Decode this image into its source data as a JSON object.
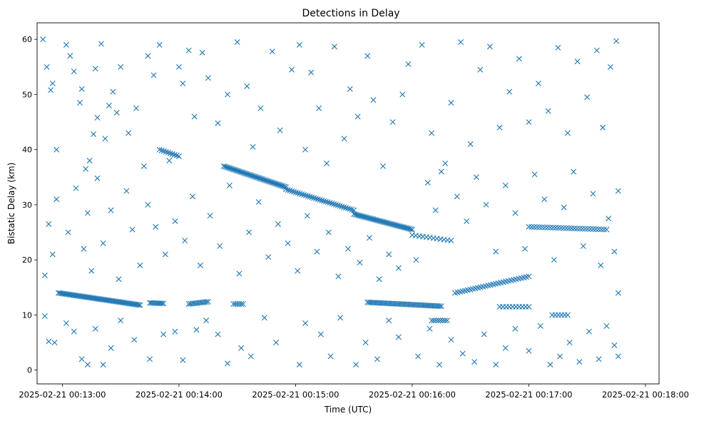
{
  "chart_data": {
    "type": "scatter",
    "title": "Detections in Delay",
    "xlabel": "Time (UTC)",
    "ylabel": "Bistatic Delay (km)",
    "marker": "x",
    "color": "#1f77b4",
    "grid": false,
    "xlim": [
      "2025-02-21 00:12:47",
      "2025-02-21 00:18:07"
    ],
    "ylim": [
      -2.5,
      63
    ],
    "x_ticks": [
      "2025-02-21 00:13:00",
      "2025-02-21 00:14:00",
      "2025-02-21 00:15:00",
      "2025-02-21 00:16:00",
      "2025-02-21 00:17:00",
      "2025-02-21 00:18:00"
    ],
    "y_ticks": [
      "0",
      "10",
      "20",
      "30",
      "40",
      "50",
      "60"
    ],
    "segments": [
      {
        "t_start": "2025-02-21 00:12:58",
        "t_end": "2025-02-21 00:13:40",
        "delay_start": 14.0,
        "delay_end": 11.8,
        "points": 60
      },
      {
        "t_start": "2025-02-21 00:13:45",
        "t_end": "2025-02-21 00:13:52",
        "delay_start": 12.2,
        "delay_end": 12.1,
        "points": 10
      },
      {
        "t_start": "2025-02-21 00:14:05",
        "t_end": "2025-02-21 00:14:15",
        "delay_start": 12.0,
        "delay_end": 12.4,
        "points": 12
      },
      {
        "t_start": "2025-02-21 00:14:28",
        "t_end": "2025-02-21 00:14:33",
        "delay_start": 12.0,
        "delay_end": 12.0,
        "points": 6
      },
      {
        "t_start": "2025-02-21 00:15:37",
        "t_end": "2025-02-21 00:16:15",
        "delay_start": 12.3,
        "delay_end": 11.6,
        "points": 45
      },
      {
        "t_start": "2025-02-21 00:13:50",
        "t_end": "2025-02-21 00:14:00",
        "delay_start": 40.0,
        "delay_end": 38.8,
        "points": 10
      },
      {
        "t_start": "2025-02-21 00:14:23",
        "t_end": "2025-02-21 00:14:55",
        "delay_start": 37.0,
        "delay_end": 33.2,
        "points": 45
      },
      {
        "t_start": "2025-02-21 00:14:55",
        "t_end": "2025-02-21 00:15:30",
        "delay_start": 32.8,
        "delay_end": 29.0,
        "points": 35
      },
      {
        "t_start": "2025-02-21 00:15:30",
        "t_end": "2025-02-21 00:16:00",
        "delay_start": 28.3,
        "delay_end": 25.5,
        "points": 40
      },
      {
        "t_start": "2025-02-21 00:16:00",
        "t_end": "2025-02-21 00:16:20",
        "delay_start": 24.5,
        "delay_end": 23.5,
        "points": 12
      },
      {
        "t_start": "2025-02-21 00:16:22",
        "t_end": "2025-02-21 00:17:00",
        "delay_start": 14.0,
        "delay_end": 17.0,
        "points": 30
      },
      {
        "t_start": "2025-02-21 00:17:00",
        "t_end": "2025-02-21 00:17:40",
        "delay_start": 26.0,
        "delay_end": 25.5,
        "points": 30
      },
      {
        "t_start": "2025-02-21 00:16:45",
        "t_end": "2025-02-21 00:17:00",
        "delay_start": 11.5,
        "delay_end": 11.5,
        "points": 10
      },
      {
        "t_start": "2025-02-21 00:16:10",
        "t_end": "2025-02-21 00:16:18",
        "delay_start": 9.0,
        "delay_end": 9.0,
        "points": 8
      },
      {
        "t_start": "2025-02-21 00:17:12",
        "t_end": "2025-02-21 00:17:20",
        "delay_start": 10.0,
        "delay_end": 10.0,
        "points": 6
      }
    ],
    "scatter_points": [
      [
        "2025-02-21 00:12:50",
        60.0
      ],
      [
        "2025-02-21 00:12:52",
        55.0
      ],
      [
        "2025-02-21 00:12:54",
        50.8
      ],
      [
        "2025-02-21 00:12:55",
        52.0
      ],
      [
        "2025-02-21 00:12:57",
        40.0
      ],
      [
        "2025-02-21 00:13:02",
        59.0
      ],
      [
        "2025-02-21 00:13:04",
        57.0
      ],
      [
        "2025-02-21 00:13:06",
        54.2
      ],
      [
        "2025-02-21 00:13:09",
        48.5
      ],
      [
        "2025-02-21 00:13:10",
        51.0
      ],
      [
        "2025-02-21 00:13:12",
        36.5
      ],
      [
        "2025-02-21 00:13:14",
        38.0
      ],
      [
        "2025-02-21 00:13:16",
        42.8
      ],
      [
        "2025-02-21 00:13:17",
        54.7
      ],
      [
        "2025-02-21 00:13:18",
        45.8
      ],
      [
        "2025-02-21 00:13:20",
        59.2
      ],
      [
        "2025-02-21 00:13:22",
        42.0
      ],
      [
        "2025-02-21 00:13:24",
        48.0
      ],
      [
        "2025-02-21 00:13:26",
        50.5
      ],
      [
        "2025-02-21 00:13:28",
        46.7
      ],
      [
        "2025-02-21 00:13:30",
        55.0
      ],
      [
        "2025-02-21 00:13:34",
        43.0
      ],
      [
        "2025-02-21 00:13:38",
        47.5
      ],
      [
        "2025-02-21 00:13:42",
        37.0
      ],
      [
        "2025-02-21 00:13:44",
        57.0
      ],
      [
        "2025-02-21 00:13:47",
        53.5
      ],
      [
        "2025-02-21 00:13:50",
        59.0
      ],
      [
        "2025-02-21 00:13:55",
        38.0
      ],
      [
        "2025-02-21 00:14:00",
        55.0
      ],
      [
        "2025-02-21 00:14:02",
        52.0
      ],
      [
        "2025-02-21 00:14:05",
        58.0
      ],
      [
        "2025-02-21 00:14:08",
        46.0
      ],
      [
        "2025-02-21 00:14:12",
        57.6
      ],
      [
        "2025-02-21 00:14:15",
        53.0
      ],
      [
        "2025-02-21 00:14:20",
        44.8
      ],
      [
        "2025-02-21 00:14:25",
        50.0
      ],
      [
        "2025-02-21 00:14:30",
        59.5
      ],
      [
        "2025-02-21 00:14:35",
        51.5
      ],
      [
        "2025-02-21 00:14:38",
        40.5
      ],
      [
        "2025-02-21 00:14:42",
        47.5
      ],
      [
        "2025-02-21 00:14:48",
        57.8
      ],
      [
        "2025-02-21 00:14:52",
        43.5
      ],
      [
        "2025-02-21 00:14:58",
        54.5
      ],
      [
        "2025-02-21 00:15:02",
        59.0
      ],
      [
        "2025-02-21 00:15:05",
        40.0
      ],
      [
        "2025-02-21 00:15:08",
        54.0
      ],
      [
        "2025-02-21 00:15:12",
        47.5
      ],
      [
        "2025-02-21 00:15:16",
        37.5
      ],
      [
        "2025-02-21 00:15:20",
        58.7
      ],
      [
        "2025-02-21 00:15:25",
        42.0
      ],
      [
        "2025-02-21 00:15:28",
        51.0
      ],
      [
        "2025-02-21 00:15:32",
        46.0
      ],
      [
        "2025-02-21 00:15:37",
        57.0
      ],
      [
        "2025-02-21 00:15:40",
        49.0
      ],
      [
        "2025-02-21 00:15:45",
        37.0
      ],
      [
        "2025-02-21 00:15:50",
        45.0
      ],
      [
        "2025-02-21 00:15:55",
        50.0
      ],
      [
        "2025-02-21 00:15:58",
        55.5
      ],
      [
        "2025-02-21 00:16:05",
        59.0
      ],
      [
        "2025-02-21 00:16:10",
        43.0
      ],
      [
        "2025-02-21 00:16:15",
        36.0
      ],
      [
        "2025-02-21 00:16:20",
        48.5
      ],
      [
        "2025-02-21 00:16:25",
        59.5
      ],
      [
        "2025-02-21 00:16:30",
        41.0
      ],
      [
        "2025-02-21 00:16:35",
        54.5
      ],
      [
        "2025-02-21 00:16:40",
        58.7
      ],
      [
        "2025-02-21 00:16:45",
        44.0
      ],
      [
        "2025-02-21 00:16:50",
        50.5
      ],
      [
        "2025-02-21 00:16:55",
        56.5
      ],
      [
        "2025-02-21 00:17:00",
        45.0
      ],
      [
        "2025-02-21 00:17:05",
        52.0
      ],
      [
        "2025-02-21 00:17:10",
        47.0
      ],
      [
        "2025-02-21 00:17:15",
        58.5
      ],
      [
        "2025-02-21 00:17:20",
        43.0
      ],
      [
        "2025-02-21 00:17:25",
        56.0
      ],
      [
        "2025-02-21 00:17:30",
        49.5
      ],
      [
        "2025-02-21 00:17:35",
        58.0
      ],
      [
        "2025-02-21 00:17:38",
        44.0
      ],
      [
        "2025-02-21 00:17:42",
        55.0
      ],
      [
        "2025-02-21 00:17:45",
        59.7
      ],
      [
        "2025-02-21 00:12:51",
        17.2
      ],
      [
        "2025-02-21 00:12:53",
        26.5
      ],
      [
        "2025-02-21 00:12:55",
        21.0
      ],
      [
        "2025-02-21 00:12:57",
        31.0
      ],
      [
        "2025-02-21 00:13:03",
        25.0
      ],
      [
        "2025-02-21 00:13:07",
        33.0
      ],
      [
        "2025-02-21 00:13:11",
        22.0
      ],
      [
        "2025-02-21 00:13:13",
        28.5
      ],
      [
        "2025-02-21 00:13:15",
        18.0
      ],
      [
        "2025-02-21 00:13:18",
        34.8
      ],
      [
        "2025-02-21 00:13:21",
        23.0
      ],
      [
        "2025-02-21 00:13:25",
        29.0
      ],
      [
        "2025-02-21 00:13:29",
        16.5
      ],
      [
        "2025-02-21 00:13:33",
        32.5
      ],
      [
        "2025-02-21 00:13:36",
        25.5
      ],
      [
        "2025-02-21 00:13:40",
        19.0
      ],
      [
        "2025-02-21 00:13:44",
        30.0
      ],
      [
        "2025-02-21 00:13:48",
        26.0
      ],
      [
        "2025-02-21 00:13:53",
        21.0
      ],
      [
        "2025-02-21 00:13:58",
        27.0
      ],
      [
        "2025-02-21 00:14:03",
        23.5
      ],
      [
        "2025-02-21 00:14:07",
        31.5
      ],
      [
        "2025-02-21 00:14:11",
        19.0
      ],
      [
        "2025-02-21 00:14:16",
        28.0
      ],
      [
        "2025-02-21 00:14:21",
        22.5
      ],
      [
        "2025-02-21 00:14:26",
        33.5
      ],
      [
        "2025-02-21 00:14:31",
        17.5
      ],
      [
        "2025-02-21 00:14:36",
        25.0
      ],
      [
        "2025-02-21 00:14:41",
        30.5
      ],
      [
        "2025-02-21 00:14:46",
        20.5
      ],
      [
        "2025-02-21 00:14:51",
        26.5
      ],
      [
        "2025-02-21 00:14:56",
        23.0
      ],
      [
        "2025-02-21 00:15:01",
        18.0
      ],
      [
        "2025-02-21 00:15:06",
        28.0
      ],
      [
        "2025-02-21 00:15:11",
        21.5
      ],
      [
        "2025-02-21 00:15:17",
        25.0
      ],
      [
        "2025-02-21 00:15:22",
        17.0
      ],
      [
        "2025-02-21 00:15:27",
        22.0
      ],
      [
        "2025-02-21 00:15:33",
        19.5
      ],
      [
        "2025-02-21 00:15:38",
        24.0
      ],
      [
        "2025-02-21 00:15:43",
        16.5
      ],
      [
        "2025-02-21 00:15:48",
        21.0
      ],
      [
        "2025-02-21 00:15:53",
        18.5
      ],
      [
        "2025-02-21 00:16:02",
        20.0
      ],
      [
        "2025-02-21 00:16:08",
        34.0
      ],
      [
        "2025-02-21 00:16:12",
        29.0
      ],
      [
        "2025-02-21 00:16:17",
        37.5
      ],
      [
        "2025-02-21 00:16:23",
        31.5
      ],
      [
        "2025-02-21 00:16:28",
        27.0
      ],
      [
        "2025-02-21 00:16:33",
        35.0
      ],
      [
        "2025-02-21 00:16:38",
        30.0
      ],
      [
        "2025-02-21 00:16:43",
        21.5
      ],
      [
        "2025-02-21 00:16:48",
        33.5
      ],
      [
        "2025-02-21 00:16:53",
        28.5
      ],
      [
        "2025-02-21 00:16:58",
        22.0
      ],
      [
        "2025-02-21 00:17:03",
        35.5
      ],
      [
        "2025-02-21 00:17:08",
        31.0
      ],
      [
        "2025-02-21 00:17:13",
        20.0
      ],
      [
        "2025-02-21 00:17:18",
        29.5
      ],
      [
        "2025-02-21 00:17:23",
        36.0
      ],
      [
        "2025-02-21 00:17:28",
        22.5
      ],
      [
        "2025-02-21 00:17:33",
        32.0
      ],
      [
        "2025-02-21 00:17:37",
        19.0
      ],
      [
        "2025-02-21 00:17:41",
        27.5
      ],
      [
        "2025-02-21 00:17:44",
        21.5
      ],
      [
        "2025-02-21 00:17:46",
        32.5
      ],
      [
        "2025-02-21 00:17:46",
        14.0
      ],
      [
        "2025-02-21 00:12:51",
        9.8
      ],
      [
        "2025-02-21 00:12:53",
        5.2
      ],
      [
        "2025-02-21 00:12:56",
        5.0
      ],
      [
        "2025-02-21 00:13:02",
        8.5
      ],
      [
        "2025-02-21 00:13:06",
        7.0
      ],
      [
        "2025-02-21 00:13:10",
        2.0
      ],
      [
        "2025-02-21 00:13:13",
        1.0
      ],
      [
        "2025-02-21 00:13:17",
        7.5
      ],
      [
        "2025-02-21 00:13:21",
        1.0
      ],
      [
        "2025-02-21 00:13:25",
        4.0
      ],
      [
        "2025-02-21 00:13:30",
        9.0
      ],
      [
        "2025-02-21 00:13:37",
        5.5
      ],
      [
        "2025-02-21 00:13:45",
        2.0
      ],
      [
        "2025-02-21 00:13:52",
        6.5
      ],
      [
        "2025-02-21 00:13:58",
        7.0
      ],
      [
        "2025-02-21 00:14:02",
        1.8
      ],
      [
        "2025-02-21 00:14:09",
        7.3
      ],
      [
        "2025-02-21 00:14:14",
        9.0
      ],
      [
        "2025-02-21 00:14:20",
        6.5
      ],
      [
        "2025-02-21 00:14:25",
        1.2
      ],
      [
        "2025-02-21 00:14:32",
        4.0
      ],
      [
        "2025-02-21 00:14:37",
        2.5
      ],
      [
        "2025-02-21 00:14:44",
        9.5
      ],
      [
        "2025-02-21 00:14:50",
        5.0
      ],
      [
        "2025-02-21 00:15:02",
        1.0
      ],
      [
        "2025-02-21 00:15:05",
        8.5
      ],
      [
        "2025-02-21 00:15:13",
        6.5
      ],
      [
        "2025-02-21 00:15:18",
        2.5
      ],
      [
        "2025-02-21 00:15:23",
        9.5
      ],
      [
        "2025-02-21 00:15:31",
        1.0
      ],
      [
        "2025-02-21 00:15:36",
        5.0
      ],
      [
        "2025-02-21 00:15:42",
        2.0
      ],
      [
        "2025-02-21 00:15:48",
        9.0
      ],
      [
        "2025-02-21 00:15:53",
        6.0
      ],
      [
        "2025-02-21 00:16:03",
        2.5
      ],
      [
        "2025-02-21 00:16:09",
        7.5
      ],
      [
        "2025-02-21 00:16:14",
        1.0
      ],
      [
        "2025-02-21 00:16:20",
        5.5
      ],
      [
        "2025-02-21 00:16:26",
        3.0
      ],
      [
        "2025-02-21 00:16:32",
        1.5
      ],
      [
        "2025-02-21 00:16:37",
        6.5
      ],
      [
        "2025-02-21 00:16:43",
        1.0
      ],
      [
        "2025-02-21 00:16:48",
        4.0
      ],
      [
        "2025-02-21 00:16:53",
        7.5
      ],
      [
        "2025-02-21 00:17:00",
        3.5
      ],
      [
        "2025-02-21 00:17:06",
        8.0
      ],
      [
        "2025-02-21 00:17:11",
        1.0
      ],
      [
        "2025-02-21 00:17:16",
        2.5
      ],
      [
        "2025-02-21 00:17:21",
        5.0
      ],
      [
        "2025-02-21 00:17:26",
        1.5
      ],
      [
        "2025-02-21 00:17:31",
        7.0
      ],
      [
        "2025-02-21 00:17:36",
        2.0
      ],
      [
        "2025-02-21 00:17:40",
        8.0
      ],
      [
        "2025-02-21 00:17:44",
        4.5
      ],
      [
        "2025-02-21 00:17:46",
        2.5
      ]
    ]
  }
}
